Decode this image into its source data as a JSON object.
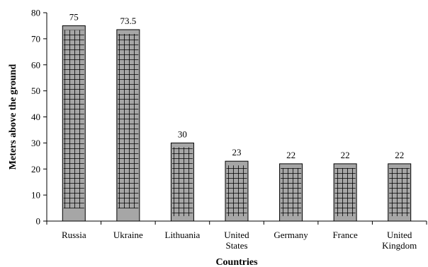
{
  "chart_data": {
    "type": "bar",
    "categories": [
      [
        "Russia"
      ],
      [
        "Ukraine"
      ],
      [
        "Lithuania"
      ],
      [
        "United",
        "States"
      ],
      [
        "Germany"
      ],
      [
        "France"
      ],
      [
        "United",
        "Kingdom"
      ]
    ],
    "values": [
      75,
      73.5,
      30,
      23,
      22,
      22,
      22
    ],
    "data_labels": [
      "75",
      "73.5",
      "30",
      "23",
      "22",
      "22",
      "22"
    ],
    "xlabel": "Countries",
    "ylabel": "Meters above the ground",
    "ylim": [
      0,
      80
    ],
    "yticks": [
      0,
      10,
      20,
      30,
      40,
      50,
      60,
      70,
      80
    ],
    "grid": false,
    "legend": "none",
    "colors": {
      "bar_fill": "#a6a6a6",
      "hatch_line": "#000000",
      "bar_outline": "#000000"
    }
  }
}
